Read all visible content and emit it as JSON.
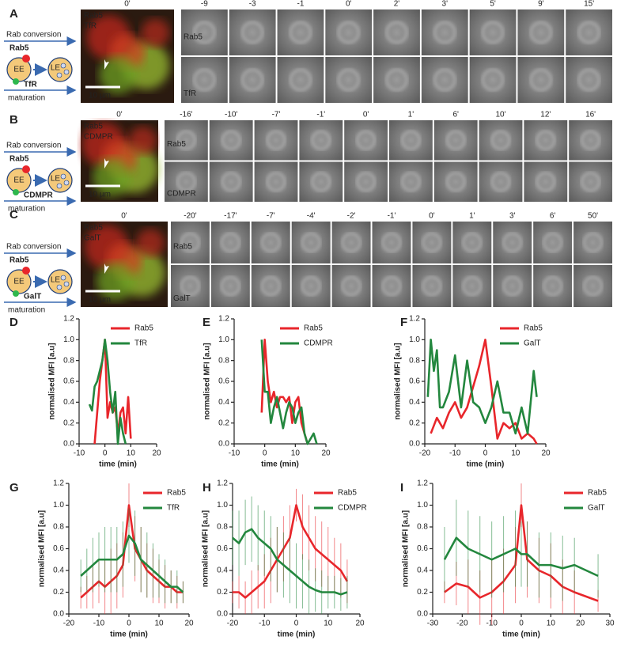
{
  "panels": [
    {
      "letter": "A",
      "diagram": {
        "conversion": "Rab conversion",
        "rab": "Rab5",
        "early": "EE",
        "late": "LE",
        "cargo": "TfR",
        "maturation": "maturation"
      },
      "overview": {
        "time": "0'",
        "channels": [
          "Rab5",
          "TfR"
        ],
        "scale": "10 µm"
      },
      "times": [
        "-9",
        "-3",
        "-1",
        "0'",
        "2'",
        "3'",
        "5'",
        "9'",
        "15'"
      ],
      "rows": [
        "Rab5",
        "TfR"
      ]
    },
    {
      "letter": "B",
      "diagram": {
        "conversion": "Rab conversion",
        "rab": "Rab5",
        "early": "EE",
        "late": "LE",
        "cargo": "CDMPR",
        "maturation": "maturation"
      },
      "overview": {
        "time": "0'",
        "channels": [
          "Rab5",
          "CDMPR"
        ],
        "scale": "10 µm"
      },
      "times": [
        "-16'",
        "-10'",
        "-7'",
        "-1'",
        "0'",
        "1'",
        "6'",
        "10'",
        "12'",
        "16'"
      ],
      "rows": [
        "Rab5",
        "CDMPR"
      ]
    },
    {
      "letter": "C",
      "diagram": {
        "conversion": "Rab conversion",
        "rab": "Rab5",
        "early": "EE",
        "late": "LE",
        "cargo": "GalT",
        "maturation": "maturation"
      },
      "overview": {
        "time": "0'",
        "channels": [
          "Rab5",
          "GalT"
        ],
        "scale": "10 µm"
      },
      "times": [
        "-20'",
        "-17'",
        "-7'",
        "-4'",
        "-2'",
        "-1'",
        "0'",
        "1'",
        "3'",
        "6'",
        "50'"
      ],
      "rows": [
        "Rab5",
        "GalT"
      ]
    }
  ],
  "chart_data": [
    {
      "type": "line",
      "panel": "D",
      "xlabel": "time (min)",
      "ylabel": "normalised MFI [a.u]",
      "legend": "upper right",
      "xlim": [
        -10,
        20
      ],
      "xticks": [
        -10,
        0,
        10,
        20
      ],
      "ylim": [
        0,
        1.2
      ],
      "yticks": [
        {
          "value": 0,
          "label": "0.0"
        },
        0.2,
        0.4,
        0.6,
        0.8,
        {
          "value": 1,
          "label": "1.0"
        },
        1.2
      ],
      "series": [
        {
          "name": "Rab5",
          "color": "#e8262b",
          "x": [
            -4,
            -3,
            -2,
            -1,
            0,
            1,
            2,
            3,
            4,
            5,
            6,
            7,
            8,
            9,
            10
          ],
          "values": [
            0,
            0.3,
            0.6,
            0.8,
            1.0,
            0.25,
            0.4,
            0.3,
            0.35,
            0.1,
            0.3,
            0.35,
            0.1,
            0.45,
            0.05
          ]
        },
        {
          "name": "TfR",
          "color": "#23873e",
          "x": [
            -6,
            -5,
            -4,
            -3,
            -2,
            -1,
            0,
            1,
            2,
            3,
            4,
            5,
            6,
            7,
            8
          ],
          "values": [
            0.38,
            0.32,
            0.55,
            0.6,
            0.7,
            0.8,
            1.0,
            0.8,
            0.5,
            0.3,
            0.5,
            0.0,
            0.25,
            0.1,
            0.0
          ]
        }
      ]
    },
    {
      "type": "line",
      "panel": "E",
      "xlabel": "time (min)",
      "ylabel": "normalised MFI [a.u]",
      "legend": "upper right",
      "xlim": [
        -10,
        20
      ],
      "xticks": [
        -10,
        0,
        10,
        20
      ],
      "ylim": [
        0,
        1.2
      ],
      "yticks": [
        {
          "value": 0,
          "label": "0.0"
        },
        0.2,
        0.4,
        0.6,
        0.8,
        {
          "value": 1,
          "label": "1.0"
        },
        1.2
      ],
      "series": [
        {
          "name": "Rab5",
          "color": "#e8262b",
          "x": [
            -1,
            0,
            1,
            2,
            3,
            4,
            5,
            6,
            7,
            8,
            9,
            10,
            11,
            12,
            13,
            14
          ],
          "values": [
            0.3,
            1.0,
            0.6,
            0.4,
            0.5,
            0.35,
            0.45,
            0.45,
            0.4,
            0.45,
            0.2,
            0.4,
            0.45,
            0.2,
            0.1,
            0.0
          ]
        },
        {
          "name": "CDMPR",
          "color": "#23873e",
          "x": [
            -1,
            0,
            1,
            2,
            3,
            4,
            5,
            6,
            7,
            8,
            9,
            10,
            11,
            12,
            13,
            14,
            15,
            16,
            17
          ],
          "values": [
            1.0,
            0.5,
            0.5,
            0.2,
            0.35,
            0.45,
            0.3,
            0.15,
            0.3,
            0.4,
            0.35,
            0.2,
            0.3,
            0.35,
            0.1,
            0.0,
            0.05,
            0.1,
            0.0
          ]
        }
      ]
    },
    {
      "type": "line",
      "panel": "F",
      "xlabel": "time (min)",
      "ylabel": "normalised MFI [a.u]",
      "legend": "upper right",
      "xlim": [
        -20,
        20
      ],
      "xticks": [
        -20,
        -10,
        0,
        10,
        20
      ],
      "ylim": [
        0,
        1.2
      ],
      "yticks": [
        {
          "value": 0,
          "label": "0.0"
        },
        0.2,
        0.4,
        0.6,
        0.8,
        {
          "value": 1,
          "label": "1.0"
        },
        1.2
      ],
      "series": [
        {
          "name": "Rab5",
          "color": "#e8262b",
          "x": [
            -18,
            -16,
            -14,
            -12,
            -10,
            -8,
            -6,
            -4,
            -2,
            0,
            2,
            4,
            6,
            8,
            10,
            12,
            14,
            16,
            17
          ],
          "values": [
            0.1,
            0.25,
            0.15,
            0.3,
            0.4,
            0.25,
            0.35,
            0.55,
            0.75,
            1.0,
            0.55,
            0.05,
            0.2,
            0.15,
            0.2,
            0.05,
            0.1,
            0.05,
            0.0
          ]
        },
        {
          "name": "GalT",
          "color": "#23873e",
          "x": [
            -19,
            -18,
            -17,
            -16,
            -15,
            -14,
            -12,
            -10,
            -8,
            -6,
            -4,
            -2,
            0,
            2,
            4,
            6,
            8,
            10,
            12,
            14,
            16,
            17
          ],
          "values": [
            0.45,
            1.0,
            0.7,
            0.9,
            0.35,
            0.35,
            0.5,
            0.85,
            0.35,
            0.8,
            0.4,
            0.35,
            0.2,
            0.35,
            0.6,
            0.3,
            0.3,
            0.1,
            0.35,
            0.1,
            0.7,
            0.45
          ]
        }
      ]
    },
    {
      "type": "errorline",
      "panel": "G",
      "xlabel": "time (min)",
      "ylabel": "normalised MFI [a.u]",
      "legend": "upper right",
      "xlim": [
        -20,
        20
      ],
      "xticks": [
        -20,
        -10,
        0,
        10,
        20
      ],
      "ylim": [
        0,
        1.2
      ],
      "yticks": [
        {
          "value": 0,
          "label": "0.0"
        },
        0.2,
        0.4,
        0.6,
        0.8,
        {
          "value": 1,
          "label": "1.0"
        },
        1.2
      ],
      "series": [
        {
          "name": "Rab5",
          "color": "#e8262b",
          "x": [
            -16,
            -14,
            -12,
            -10,
            -8,
            -6,
            -4,
            -2,
            0,
            2,
            4,
            6,
            8,
            10,
            12,
            14,
            16,
            18
          ],
          "values": [
            0.15,
            0.2,
            0.25,
            0.3,
            0.25,
            0.3,
            0.35,
            0.45,
            1.0,
            0.6,
            0.5,
            0.4,
            0.35,
            0.3,
            0.25,
            0.25,
            0.2,
            0.2
          ],
          "errors": [
            0.1,
            0.15,
            0.2,
            0.2,
            0.25,
            0.3,
            0.3,
            0.3,
            0.2,
            0.3,
            0.3,
            0.25,
            0.25,
            0.2,
            0.2,
            0.15,
            0.15,
            0.1
          ]
        },
        {
          "name": "TfR",
          "color": "#23873e",
          "x": [
            -16,
            -14,
            -12,
            -10,
            -8,
            -6,
            -4,
            -2,
            0,
            2,
            4,
            6,
            8,
            10,
            12,
            14,
            16,
            18
          ],
          "values": [
            0.35,
            0.4,
            0.45,
            0.5,
            0.5,
            0.5,
            0.5,
            0.55,
            0.72,
            0.65,
            0.5,
            0.45,
            0.4,
            0.35,
            0.3,
            0.25,
            0.25,
            0.2
          ],
          "errors": [
            0.15,
            0.2,
            0.25,
            0.25,
            0.3,
            0.3,
            0.3,
            0.3,
            0.25,
            0.3,
            0.3,
            0.3,
            0.25,
            0.2,
            0.2,
            0.15,
            0.15,
            0.1
          ]
        }
      ]
    },
    {
      "type": "errorline",
      "panel": "H",
      "xlabel": "time (min)",
      "ylabel": "normalised MFI [a.u]",
      "legend": "upper right",
      "xlim": [
        -20,
        20
      ],
      "xticks": [
        -20,
        -10,
        0,
        10,
        20
      ],
      "ylim": [
        0,
        1.2
      ],
      "yticks": [
        {
          "value": 0,
          "label": "0.0"
        },
        0.2,
        0.4,
        0.6,
        0.8,
        {
          "value": 1,
          "label": "1.0"
        },
        1.2
      ],
      "series": [
        {
          "name": "Rab5",
          "color": "#e8262b",
          "x": [
            -20,
            -18,
            -16,
            -14,
            -12,
            -10,
            -8,
            -6,
            -4,
            -2,
            0,
            2,
            4,
            6,
            8,
            10,
            12,
            14,
            16
          ],
          "values": [
            0.2,
            0.2,
            0.15,
            0.2,
            0.25,
            0.3,
            0.4,
            0.5,
            0.6,
            0.7,
            1.0,
            0.8,
            0.7,
            0.6,
            0.55,
            0.5,
            0.45,
            0.4,
            0.3
          ],
          "errors": [
            0.1,
            0.15,
            0.15,
            0.2,
            0.2,
            0.25,
            0.3,
            0.3,
            0.3,
            0.3,
            0.15,
            0.3,
            0.3,
            0.3,
            0.3,
            0.3,
            0.25,
            0.25,
            0.2
          ]
        },
        {
          "name": "CDMPR",
          "color": "#23873e",
          "x": [
            -20,
            -18,
            -16,
            -14,
            -12,
            -10,
            -8,
            -6,
            -4,
            -2,
            0,
            2,
            4,
            6,
            8,
            10,
            12,
            14,
            16
          ],
          "values": [
            0.7,
            0.65,
            0.75,
            0.78,
            0.7,
            0.65,
            0.6,
            0.5,
            0.45,
            0.4,
            0.35,
            0.3,
            0.25,
            0.22,
            0.2,
            0.2,
            0.2,
            0.18,
            0.2
          ],
          "errors": [
            0.25,
            0.3,
            0.3,
            0.3,
            0.3,
            0.3,
            0.3,
            0.3,
            0.3,
            0.3,
            0.3,
            0.25,
            0.25,
            0.2,
            0.2,
            0.15,
            0.15,
            0.15,
            0.15
          ]
        }
      ]
    },
    {
      "type": "errorline",
      "panel": "I",
      "xlabel": "time (min)",
      "ylabel": "normalised MFI [a.u]",
      "legend": "upper right",
      "xlim": [
        -30,
        30
      ],
      "xticks": [
        -30,
        -20,
        -10,
        0,
        10,
        20,
        30
      ],
      "ylim": [
        0,
        1.2
      ],
      "yticks": [
        {
          "value": 0,
          "label": "0.0"
        },
        0.2,
        0.4,
        0.6,
        0.8,
        {
          "value": 1,
          "label": "1.0"
        },
        1.2
      ],
      "series": [
        {
          "name": "Rab5",
          "color": "#e8262b",
          "x": [
            -26,
            -22,
            -18,
            -14,
            -10,
            -6,
            -2,
            0,
            2,
            6,
            10,
            14,
            18,
            26
          ],
          "values": [
            0.2,
            0.28,
            0.25,
            0.15,
            0.2,
            0.3,
            0.45,
            1.0,
            0.5,
            0.4,
            0.35,
            0.25,
            0.2,
            0.12
          ],
          "errors": [
            0.1,
            0.2,
            0.25,
            0.25,
            0.3,
            0.3,
            0.35,
            0.2,
            0.35,
            0.3,
            0.3,
            0.25,
            0.2,
            0.1
          ]
        },
        {
          "name": "GalT",
          "color": "#23873e",
          "x": [
            -26,
            -22,
            -18,
            -14,
            -10,
            -6,
            -2,
            0,
            2,
            6,
            10,
            14,
            18,
            26
          ],
          "values": [
            0.5,
            0.7,
            0.6,
            0.55,
            0.5,
            0.55,
            0.6,
            0.55,
            0.55,
            0.45,
            0.45,
            0.42,
            0.45,
            0.35
          ],
          "errors": [
            0.3,
            0.35,
            0.35,
            0.35,
            0.35,
            0.35,
            0.35,
            0.3,
            0.3,
            0.3,
            0.3,
            0.3,
            0.25,
            0.2
          ]
        }
      ]
    }
  ]
}
